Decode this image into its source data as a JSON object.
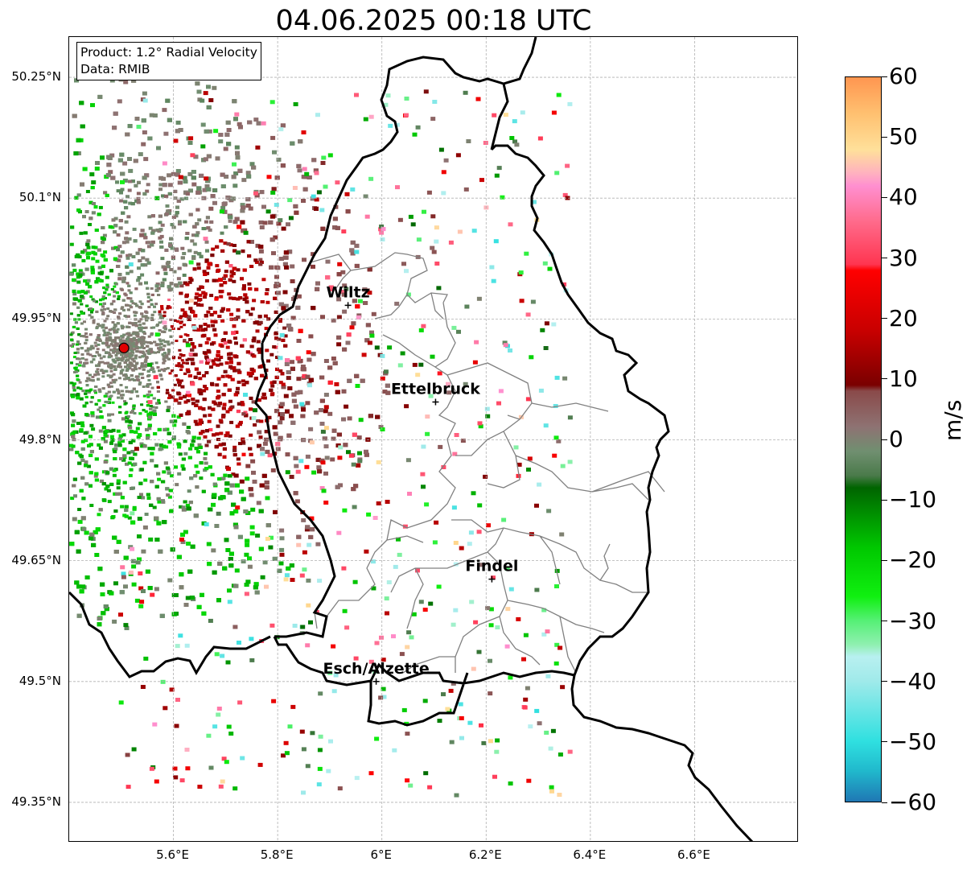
{
  "title": "04.06.2025 00:18 UTC",
  "info": {
    "product_line": "Product: 1.2° Radial Velocity",
    "data_line": "Data: RMIB"
  },
  "axes": {
    "lat_ticks": [
      {
        "value": 50.25,
        "label": "50.25°N"
      },
      {
        "value": 50.1,
        "label": "50.1°N"
      },
      {
        "value": 49.95,
        "label": "49.95°N"
      },
      {
        "value": 49.8,
        "label": "49.8°N"
      },
      {
        "value": 49.65,
        "label": "49.65°N"
      },
      {
        "value": 49.5,
        "label": "49.5°N"
      },
      {
        "value": 49.35,
        "label": "49.35°N"
      }
    ],
    "lon_ticks": [
      {
        "value": 5.6,
        "label": "5.6°E"
      },
      {
        "value": 5.8,
        "label": "5.8°E"
      },
      {
        "value": 6.0,
        "label": "6°E"
      },
      {
        "value": 6.2,
        "label": "6.2°E"
      },
      {
        "value": 6.4,
        "label": "6.4°E"
      },
      {
        "value": 6.6,
        "label": "6.6°E"
      }
    ],
    "lon_range": [
      5.4,
      6.8
    ],
    "lat_range": [
      49.3,
      50.3
    ]
  },
  "cities": [
    {
      "name": "Wiltz",
      "lon": 5.935,
      "lat": 49.967
    },
    {
      "name": "Ettelbruck",
      "lon": 6.103,
      "lat": 49.847
    },
    {
      "name": "Findel",
      "lon": 6.211,
      "lat": 49.627
    },
    {
      "name": "Esch/Alzette",
      "lon": 5.989,
      "lat": 49.5
    }
  ],
  "radar_site": {
    "lon": 5.505,
    "lat": 49.914,
    "color": "#e00000"
  },
  "colorbar": {
    "unit": "m/s",
    "range": [
      -60,
      60
    ],
    "ticks": [
      {
        "value": 60,
        "label": "60"
      },
      {
        "value": 50,
        "label": "50"
      },
      {
        "value": 40,
        "label": "40"
      },
      {
        "value": 30,
        "label": "30"
      },
      {
        "value": 20,
        "label": "20"
      },
      {
        "value": 10,
        "label": "10"
      },
      {
        "value": 0,
        "label": "0"
      },
      {
        "value": -10,
        "label": "−10"
      },
      {
        "value": -20,
        "label": "−20"
      },
      {
        "value": -30,
        "label": "−30"
      },
      {
        "value": -40,
        "label": "−40"
      },
      {
        "value": -50,
        "label": "−50"
      },
      {
        "value": -60,
        "label": "−60"
      }
    ],
    "stops": [
      {
        "v": -60,
        "c": "#1f77b4"
      },
      {
        "v": -55,
        "c": "#20b8cc"
      },
      {
        "v": -50,
        "c": "#2fe0e0"
      },
      {
        "v": -40,
        "c": "#a0eaea"
      },
      {
        "v": -36,
        "c": "#b8f0f0"
      },
      {
        "v": -34,
        "c": "#8ff0b0"
      },
      {
        "v": -30,
        "c": "#55f075"
      },
      {
        "v": -26,
        "c": "#10f010"
      },
      {
        "v": -18,
        "c": "#00c800"
      },
      {
        "v": -8,
        "c": "#006400"
      },
      {
        "v": -6,
        "c": "#4a7a4a"
      },
      {
        "v": -2,
        "c": "#708f70"
      },
      {
        "v": 2,
        "c": "#8e7373"
      },
      {
        "v": 8,
        "c": "#8a4a4a"
      },
      {
        "v": 9,
        "c": "#7a0000"
      },
      {
        "v": 18,
        "c": "#c80000"
      },
      {
        "v": 28,
        "c": "#ff0000"
      },
      {
        "v": 29,
        "c": "#ff3550"
      },
      {
        "v": 36,
        "c": "#ff6a8a"
      },
      {
        "v": 42,
        "c": "#ff8fd0"
      },
      {
        "v": 44,
        "c": "#ffb0c0"
      },
      {
        "v": 48,
        "c": "#ffe09a"
      },
      {
        "v": 54,
        "c": "#ffc070"
      },
      {
        "v": 60,
        "c": "#ff9650"
      }
    ]
  },
  "colors": {
    "border": "#000000",
    "canton": "#808080",
    "grid": "#b0b0b0"
  }
}
